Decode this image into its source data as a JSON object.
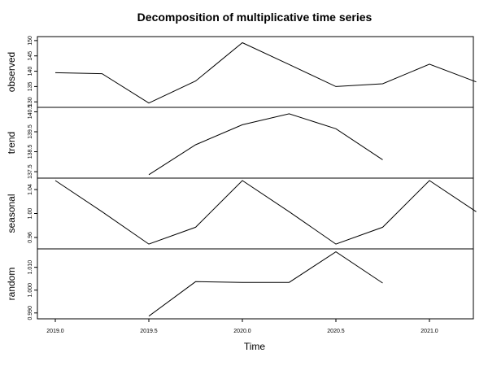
{
  "chart_data": {
    "type": "line",
    "title": "Decomposition of multiplicative time series",
    "xlabel": "Time",
    "xlim": [
      2019.0,
      2021.35
    ],
    "x_ticks": [
      2019.0,
      2019.5,
      2020.0,
      2020.5,
      2021.0
    ],
    "x_tick_labels": [
      "2019.0",
      "2019.5",
      "2020.0",
      "2020.5",
      "2021.0"
    ],
    "panels": [
      {
        "name": "observed",
        "ylabel": "observed",
        "ylim": [
          129,
          150.5
        ],
        "y_ticks": [
          130,
          135,
          140,
          145,
          150
        ],
        "y_tick_labels": [
          "130",
          "135",
          "140",
          "145",
          "150"
        ],
        "points": [
          [
            2019.0,
            139.5
          ],
          [
            2019.25,
            139.2
          ],
          [
            2019.5,
            129.6
          ],
          [
            2019.75,
            136.8
          ],
          [
            2020.0,
            149.3
          ],
          [
            2020.25,
            142.2
          ],
          [
            2020.5,
            135.0
          ],
          [
            2020.75,
            135.9
          ],
          [
            2021.0,
            142.3
          ],
          [
            2021.25,
            136.5
          ]
        ]
      },
      {
        "name": "trend",
        "ylabel": "trend",
        "ylim": [
          137.3,
          140.6
        ],
        "y_ticks": [
          137.5,
          138.5,
          139.5,
          140.5
        ],
        "y_tick_labels": [
          "137.5",
          "138.5",
          "139.5",
          "140.5"
        ],
        "points": [
          [
            2019.5,
            137.35
          ],
          [
            2019.75,
            138.85
          ],
          [
            2020.0,
            139.85
          ],
          [
            2020.25,
            140.4
          ],
          [
            2020.5,
            139.65
          ],
          [
            2020.75,
            138.1
          ]
        ]
      },
      {
        "name": "seasonal",
        "ylabel": "seasonal",
        "ylim": [
          0.945,
          1.055
        ],
        "y_ticks": [
          0.96,
          1.0,
          1.04
        ],
        "y_tick_labels": [
          "0.96",
          "1.00",
          "1.04"
        ],
        "points": [
          [
            2019.0,
            1.055
          ],
          [
            2019.25,
            1.003
          ],
          [
            2019.5,
            0.949
          ],
          [
            2019.75,
            0.977
          ],
          [
            2020.0,
            1.055
          ],
          [
            2020.25,
            1.003
          ],
          [
            2020.5,
            0.949
          ],
          [
            2020.75,
            0.977
          ],
          [
            2021.0,
            1.055
          ],
          [
            2021.25,
            1.003
          ]
        ]
      },
      {
        "name": "random",
        "ylabel": "random",
        "ylim": [
          0.9885,
          1.017
        ],
        "y_ticks": [
          0.99,
          1.0,
          1.01
        ],
        "y_tick_labels": [
          "0.990",
          "1.000",
          "1.010"
        ],
        "points": [
          [
            2019.5,
            0.9886
          ],
          [
            2019.75,
            1.0037
          ],
          [
            2020.0,
            1.0034
          ],
          [
            2020.25,
            1.0034
          ],
          [
            2020.5,
            1.0168
          ],
          [
            2020.75,
            1.0031
          ]
        ]
      }
    ]
  }
}
